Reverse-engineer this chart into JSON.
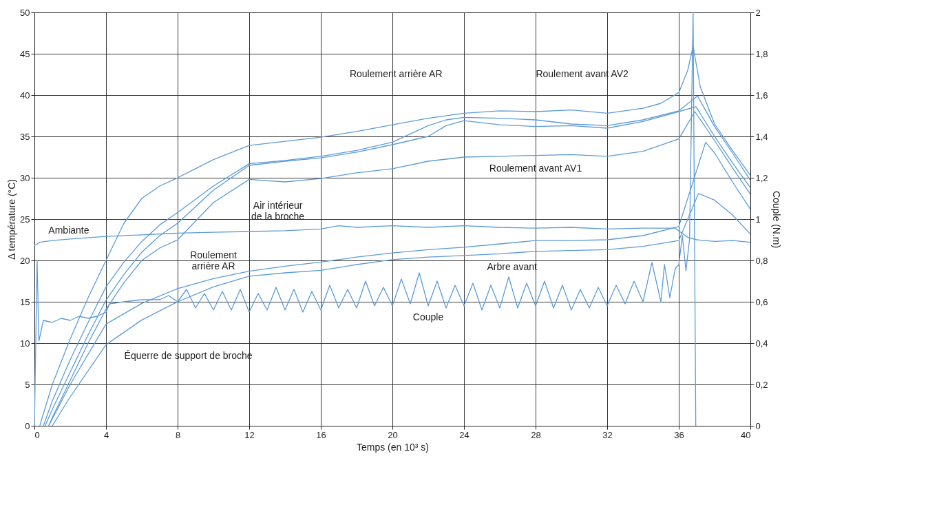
{
  "chart_data": {
    "type": "line",
    "xlabel": "Temps (en 10³ s)",
    "ylabel": "Δ température (°C)",
    "y2label": "Couple (N.m)",
    "xlim": [
      0,
      40
    ],
    "xticks": [
      0,
      4,
      8,
      12,
      16,
      20,
      24,
      28,
      32,
      36,
      40
    ],
    "ylim": [
      0,
      50
    ],
    "yticks": [
      0,
      5,
      10,
      15,
      20,
      25,
      30,
      35,
      40,
      45,
      50
    ],
    "y2lim": [
      0,
      2
    ],
    "y2ticks": [
      0,
      {
        "value": 0.2,
        "label": "0,2"
      },
      {
        "value": 0.4,
        "label": "0,4"
      },
      {
        "value": 0.6,
        "label": "0,6"
      },
      {
        "value": 0.8,
        "label": "0,8"
      },
      1,
      {
        "value": 1.2,
        "label": "1,2"
      },
      {
        "value": 1.4,
        "label": "1,4"
      },
      {
        "value": 1.6,
        "label": "1,6"
      },
      {
        "value": 1.8,
        "label": "1,8"
      },
      2
    ],
    "grid": true,
    "annotations": [
      "Roulement arrière AR",
      "Roulement avant AV2",
      "Roulement avant AV1",
      "Air intérieur\nde la broche",
      "Roulement\narrière AR",
      "Ambiante",
      "Arbre avant",
      "Couple",
      "Équerre de support de broche"
    ],
    "series": [
      {
        "color": "#5b9bd9",
        "x": [
          0.3,
          1,
          2,
          3,
          4,
          5,
          6,
          7,
          8,
          10,
          12,
          14,
          16,
          18,
          20,
          22,
          24,
          26,
          28,
          30,
          32,
          34,
          35,
          36,
          36.5,
          36.8,
          37.2,
          38,
          39,
          40
        ],
        "values": [
          0,
          5,
          10.5,
          15.5,
          20,
          24.5,
          27.5,
          29,
          30,
          32.2,
          33.9,
          34.4,
          34.9,
          35.6,
          36.4,
          37.2,
          37.8,
          38.1,
          38.0,
          38.2,
          37.8,
          38.4,
          39.0,
          40.3,
          43,
          45.9,
          41,
          36.5,
          33.3,
          30.3
        ]
      },
      {
        "color": "#5b9bd9",
        "x": [
          0.5,
          1,
          2,
          3,
          4,
          5,
          6,
          7,
          8,
          10,
          12,
          14,
          16,
          18,
          20,
          21,
          22,
          23,
          24,
          26,
          28,
          30,
          32,
          34,
          36,
          37.05,
          38,
          39,
          40
        ],
        "values": [
          0,
          3,
          8,
          12.5,
          16.8,
          19.8,
          22.3,
          24.3,
          25.8,
          29,
          31.7,
          32.1,
          32.6,
          33.3,
          34.3,
          35.3,
          36.3,
          37.0,
          37.3,
          37.2,
          37.0,
          36.5,
          36.3,
          37.0,
          38.1,
          39.9,
          36.2,
          33,
          29.7
        ]
      },
      {
        "color": "#5b9bd9",
        "x": [
          0.6,
          1,
          2,
          3,
          4,
          5,
          6,
          7,
          8,
          10,
          12,
          14,
          16,
          18,
          20,
          22,
          23,
          24,
          26,
          28,
          30,
          32,
          34,
          36,
          36.96,
          38,
          39,
          40
        ],
        "values": [
          0,
          2,
          6.5,
          11,
          15.2,
          18.3,
          21,
          23,
          24.5,
          28.5,
          31.5,
          32,
          32.4,
          33.1,
          34.0,
          35.0,
          36.3,
          36.9,
          36.4,
          36.2,
          36.3,
          36.0,
          36.8,
          38.0,
          38.6,
          35,
          31.8,
          28.8
        ]
      },
      {
        "color": "#5b9bd9",
        "x": [
          0.8,
          1,
          2,
          3,
          4,
          5,
          6,
          7,
          8,
          10,
          12,
          14,
          16,
          18,
          20,
          22,
          24,
          26,
          28,
          30,
          32,
          34,
          36,
          36.9,
          38,
          39,
          40
        ],
        "values": [
          0,
          1,
          5.5,
          10,
          14.1,
          17.3,
          20,
          21.5,
          22.5,
          27,
          29.8,
          29.5,
          29.9,
          30.6,
          31.1,
          32,
          32.5,
          32.6,
          32.7,
          32.8,
          32.6,
          33.2,
          34.7,
          38.0,
          34.5,
          31.2,
          28.0
        ]
      },
      {
        "color": "#5b9bd9",
        "x": [
          0.8,
          2,
          4,
          6,
          8,
          10,
          12,
          14,
          16,
          18,
          20,
          22,
          24,
          26,
          28,
          30,
          32,
          34,
          36,
          37.5,
          38,
          39,
          40
        ],
        "values": [
          0,
          5,
          12.3,
          14.8,
          16.6,
          17.8,
          18.7,
          19.3,
          19.8,
          20.4,
          20.9,
          21.3,
          21.6,
          22,
          22.4,
          22.4,
          22.5,
          23,
          24.1,
          34.3,
          33,
          29.5,
          26.2
        ]
      },
      {
        "color": "#5b9bd9",
        "x": [
          1,
          2,
          4,
          6,
          8,
          10,
          12,
          14,
          16,
          18,
          20,
          22,
          24,
          26,
          28,
          30,
          32,
          34,
          36,
          37.1,
          38,
          39,
          40
        ],
        "values": [
          0,
          3.5,
          9.8,
          12.8,
          15.0,
          16.8,
          18.1,
          18.5,
          18.8,
          19.5,
          20.1,
          20.4,
          20.6,
          20.8,
          21.1,
          21.2,
          21.3,
          21.7,
          22.4,
          28.1,
          27.3,
          25.5,
          23.2
        ]
      },
      {
        "color": "#5b9bd9",
        "x": [
          0,
          0.3,
          1,
          2,
          4,
          6,
          8,
          10,
          12,
          14,
          16,
          17,
          18,
          20,
          22,
          24,
          26,
          28,
          30,
          32,
          34,
          35.8,
          36.5,
          37,
          38,
          39,
          40
        ],
        "values": [
          21.8,
          22.2,
          22.4,
          22.6,
          22.9,
          23.1,
          23.3,
          23.4,
          23.5,
          23.6,
          23.8,
          24.2,
          24.0,
          24.2,
          24.0,
          24.2,
          24.0,
          23.9,
          24.0,
          23.8,
          23.9,
          23.9,
          22.8,
          22.5,
          22.3,
          22.4,
          22.2
        ]
      },
      {
        "color": "#5b9bd9",
        "axis": "y2",
        "x": [
          0,
          0.15,
          0.25,
          0.5,
          1,
          1.5,
          2,
          2.5,
          3,
          3.5,
          4,
          4.2,
          5,
          6,
          7,
          7.5,
          8,
          8.5,
          9,
          9.5,
          10,
          10.5,
          11,
          11.5,
          12,
          12.5,
          13,
          13.5,
          14,
          14.5,
          15,
          15.5,
          16,
          16.5,
          17,
          17.5,
          18,
          18.5,
          19,
          19.5,
          20,
          20.5,
          21,
          21.5,
          22,
          22.5,
          23,
          23.5,
          24,
          24.5,
          25,
          25.5,
          26,
          26.5,
          27,
          27.5,
          28,
          28.5,
          29,
          29.5,
          30,
          30.5,
          31,
          31.5,
          32,
          32.5,
          33,
          33.5,
          34,
          34.5,
          35,
          35.2,
          35.5,
          35.8,
          36,
          36.2,
          36.4,
          36.6,
          36.8,
          36.95
        ],
        "values": [
          0,
          0.8,
          0.41,
          0.51,
          0.5,
          0.52,
          0.51,
          0.53,
          0.52,
          0.53,
          0.55,
          0.59,
          0.6,
          0.61,
          0.61,
          0.63,
          0.6,
          0.66,
          0.57,
          0.64,
          0.56,
          0.65,
          0.56,
          0.66,
          0.55,
          0.64,
          0.56,
          0.67,
          0.56,
          0.66,
          0.55,
          0.65,
          0.56,
          0.68,
          0.57,
          0.66,
          0.57,
          0.7,
          0.58,
          0.67,
          0.58,
          0.71,
          0.59,
          0.74,
          0.58,
          0.7,
          0.57,
          0.68,
          0.58,
          0.69,
          0.56,
          0.68,
          0.57,
          0.72,
          0.57,
          0.69,
          0.58,
          0.7,
          0.57,
          0.68,
          0.56,
          0.66,
          0.57,
          0.67,
          0.58,
          0.68,
          0.59,
          0.7,
          0.6,
          0.79,
          0.6,
          0.78,
          0.62,
          0.76,
          0.78,
          0.92,
          0.75,
          0.9,
          2.0,
          0
        ]
      }
    ]
  }
}
